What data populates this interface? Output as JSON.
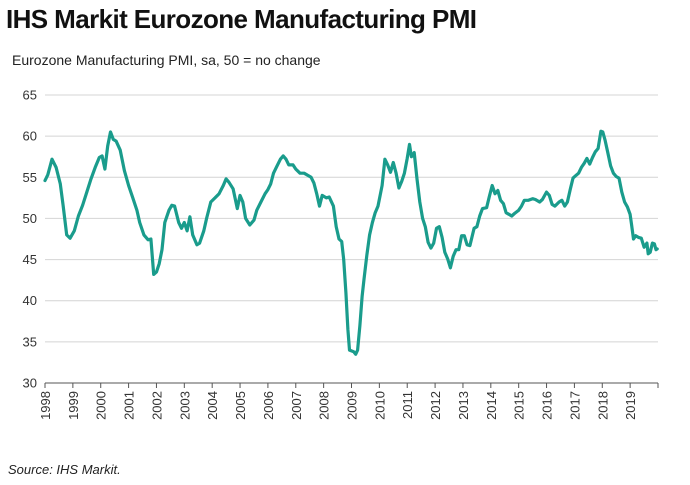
{
  "title": "IHS Markit Eurozone Manufacturing PMI",
  "subtitle": "Eurozone Manufacturing PMI, sa, 50 = no change",
  "source": "Source: IHS Markit.",
  "chart_data": {
    "type": "line",
    "title": "IHS Markit Eurozone Manufacturing PMI",
    "xlabel": "",
    "ylabel": "",
    "xlim": [
      1998.0,
      2020.0
    ],
    "ylim": [
      30,
      65
    ],
    "y_ticks": [
      30,
      35,
      40,
      45,
      50,
      55,
      60,
      65
    ],
    "x_tick_labels": [
      "1998",
      "1999",
      "2000",
      "2001",
      "2002",
      "2003",
      "2004",
      "2005",
      "2006",
      "2007",
      "2008",
      "2009",
      "2010",
      "2011",
      "2012",
      "2013",
      "2014",
      "2015",
      "2016",
      "2017",
      "2018",
      "2019"
    ],
    "grid": "horizontal",
    "line_color": "#1a9c8c",
    "series": [
      {
        "name": "Eurozone Manufacturing PMI",
        "points": [
          [
            1998.0,
            54.6
          ],
          [
            1998.1,
            55.3
          ],
          [
            1998.25,
            57.2
          ],
          [
            1998.4,
            56.2
          ],
          [
            1998.55,
            54.2
          ],
          [
            1998.65,
            51.6
          ],
          [
            1998.78,
            48.0
          ],
          [
            1998.9,
            47.6
          ],
          [
            1999.05,
            48.5
          ],
          [
            1999.2,
            50.3
          ],
          [
            1999.35,
            51.6
          ],
          [
            1999.5,
            53.2
          ],
          [
            1999.65,
            54.8
          ],
          [
            1999.8,
            56.2
          ],
          [
            1999.95,
            57.4
          ],
          [
            2000.05,
            57.6
          ],
          [
            2000.15,
            56.0
          ],
          [
            2000.25,
            58.8
          ],
          [
            2000.35,
            60.5
          ],
          [
            2000.45,
            59.6
          ],
          [
            2000.55,
            59.4
          ],
          [
            2000.7,
            58.3
          ],
          [
            2000.85,
            55.8
          ],
          [
            2001.0,
            54.0
          ],
          [
            2001.15,
            52.5
          ],
          [
            2001.3,
            51.0
          ],
          [
            2001.4,
            49.5
          ],
          [
            2001.55,
            48.0
          ],
          [
            2001.7,
            47.4
          ],
          [
            2001.8,
            47.5
          ],
          [
            2001.9,
            43.2
          ],
          [
            2002.0,
            43.5
          ],
          [
            2002.1,
            44.5
          ],
          [
            2002.2,
            46.2
          ],
          [
            2002.3,
            49.5
          ],
          [
            2002.45,
            51.0
          ],
          [
            2002.55,
            51.6
          ],
          [
            2002.65,
            51.5
          ],
          [
            2002.8,
            49.5
          ],
          [
            2002.9,
            48.8
          ],
          [
            2003.0,
            49.5
          ],
          [
            2003.1,
            48.5
          ],
          [
            2003.2,
            50.2
          ],
          [
            2003.3,
            48.0
          ],
          [
            2003.45,
            46.8
          ],
          [
            2003.55,
            47.0
          ],
          [
            2003.7,
            48.5
          ],
          [
            2003.8,
            50.0
          ],
          [
            2003.95,
            52.0
          ],
          [
            2004.1,
            52.5
          ],
          [
            2004.25,
            53.0
          ],
          [
            2004.4,
            54.0
          ],
          [
            2004.5,
            54.8
          ],
          [
            2004.6,
            54.4
          ],
          [
            2004.75,
            53.6
          ],
          [
            2004.9,
            51.2
          ],
          [
            2005.0,
            52.8
          ],
          [
            2005.1,
            52.0
          ],
          [
            2005.2,
            50.0
          ],
          [
            2005.35,
            49.2
          ],
          [
            2005.5,
            49.8
          ],
          [
            2005.6,
            51.0
          ],
          [
            2005.75,
            52.0
          ],
          [
            2005.9,
            53.0
          ],
          [
            2006.0,
            53.5
          ],
          [
            2006.1,
            54.2
          ],
          [
            2006.2,
            55.5
          ],
          [
            2006.3,
            56.2
          ],
          [
            2006.45,
            57.2
          ],
          [
            2006.55,
            57.6
          ],
          [
            2006.65,
            57.2
          ],
          [
            2006.75,
            56.5
          ],
          [
            2006.9,
            56.5
          ],
          [
            2007.0,
            56.0
          ],
          [
            2007.15,
            55.5
          ],
          [
            2007.3,
            55.5
          ],
          [
            2007.45,
            55.2
          ],
          [
            2007.55,
            55.0
          ],
          [
            2007.65,
            54.3
          ],
          [
            2007.75,
            53.0
          ],
          [
            2007.85,
            51.5
          ],
          [
            2007.95,
            52.8
          ],
          [
            2008.1,
            52.5
          ],
          [
            2008.2,
            52.6
          ],
          [
            2008.35,
            51.5
          ],
          [
            2008.45,
            49.0
          ],
          [
            2008.55,
            47.5
          ],
          [
            2008.65,
            47.2
          ],
          [
            2008.72,
            45.0
          ],
          [
            2008.8,
            41.0
          ],
          [
            2008.87,
            36.5
          ],
          [
            2008.93,
            34.0
          ],
          [
            2009.0,
            33.9
          ],
          [
            2009.08,
            33.8
          ],
          [
            2009.15,
            33.5
          ],
          [
            2009.22,
            34.0
          ],
          [
            2009.3,
            37.0
          ],
          [
            2009.38,
            40.5
          ],
          [
            2009.45,
            42.6
          ],
          [
            2009.55,
            45.5
          ],
          [
            2009.65,
            48.0
          ],
          [
            2009.75,
            49.5
          ],
          [
            2009.85,
            50.7
          ],
          [
            2009.95,
            51.5
          ],
          [
            2010.1,
            54.0
          ],
          [
            2010.2,
            57.2
          ],
          [
            2010.3,
            56.5
          ],
          [
            2010.4,
            55.6
          ],
          [
            2010.5,
            56.8
          ],
          [
            2010.6,
            55.5
          ],
          [
            2010.7,
            53.7
          ],
          [
            2010.8,
            54.5
          ],
          [
            2010.9,
            55.5
          ],
          [
            2011.0,
            57.3
          ],
          [
            2011.08,
            59.0
          ],
          [
            2011.15,
            57.5
          ],
          [
            2011.25,
            58.0
          ],
          [
            2011.35,
            54.8
          ],
          [
            2011.45,
            52.0
          ],
          [
            2011.55,
            50.0
          ],
          [
            2011.65,
            49.0
          ],
          [
            2011.75,
            47.1
          ],
          [
            2011.85,
            46.4
          ],
          [
            2011.95,
            47.0
          ],
          [
            2012.05,
            48.8
          ],
          [
            2012.15,
            49.0
          ],
          [
            2012.25,
            47.7
          ],
          [
            2012.35,
            45.9
          ],
          [
            2012.45,
            45.1
          ],
          [
            2012.55,
            44.0
          ],
          [
            2012.65,
            45.4
          ],
          [
            2012.75,
            46.2
          ],
          [
            2012.85,
            46.2
          ],
          [
            2012.95,
            47.9
          ],
          [
            2013.05,
            47.9
          ],
          [
            2013.15,
            46.8
          ],
          [
            2013.25,
            46.7
          ],
          [
            2013.4,
            48.8
          ],
          [
            2013.5,
            49.0
          ],
          [
            2013.6,
            50.3
          ],
          [
            2013.7,
            51.2
          ],
          [
            2013.85,
            51.3
          ],
          [
            2013.95,
            52.7
          ],
          [
            2014.05,
            54.0
          ],
          [
            2014.15,
            53.0
          ],
          [
            2014.25,
            53.4
          ],
          [
            2014.35,
            52.2
          ],
          [
            2014.45,
            51.8
          ],
          [
            2014.55,
            50.7
          ],
          [
            2014.65,
            50.5
          ],
          [
            2014.75,
            50.3
          ],
          [
            2014.85,
            50.6
          ],
          [
            2015.0,
            51.0
          ],
          [
            2015.1,
            51.5
          ],
          [
            2015.2,
            52.2
          ],
          [
            2015.35,
            52.2
          ],
          [
            2015.5,
            52.4
          ],
          [
            2015.6,
            52.3
          ],
          [
            2015.75,
            52.0
          ],
          [
            2015.85,
            52.3
          ],
          [
            2016.0,
            53.2
          ],
          [
            2016.1,
            52.8
          ],
          [
            2016.2,
            51.7
          ],
          [
            2016.3,
            51.5
          ],
          [
            2016.45,
            52.0
          ],
          [
            2016.55,
            52.2
          ],
          [
            2016.65,
            51.5
          ],
          [
            2016.75,
            52.0
          ],
          [
            2016.85,
            53.5
          ],
          [
            2016.95,
            54.9
          ],
          [
            2017.05,
            55.2
          ],
          [
            2017.15,
            55.5
          ],
          [
            2017.25,
            56.2
          ],
          [
            2017.35,
            56.7
          ],
          [
            2017.45,
            57.3
          ],
          [
            2017.55,
            56.6
          ],
          [
            2017.65,
            57.4
          ],
          [
            2017.75,
            58.1
          ],
          [
            2017.85,
            58.5
          ],
          [
            2017.95,
            60.6
          ],
          [
            2018.02,
            60.5
          ],
          [
            2018.1,
            59.5
          ],
          [
            2018.2,
            58.0
          ],
          [
            2018.3,
            56.4
          ],
          [
            2018.4,
            55.5
          ],
          [
            2018.5,
            55.1
          ],
          [
            2018.6,
            54.9
          ],
          [
            2018.7,
            53.2
          ],
          [
            2018.8,
            52.0
          ],
          [
            2018.9,
            51.4
          ],
          [
            2019.0,
            50.5
          ],
          [
            2019.05,
            49.3
          ],
          [
            2019.12,
            47.5
          ],
          [
            2019.2,
            47.9
          ],
          [
            2019.3,
            47.7
          ],
          [
            2019.4,
            47.6
          ],
          [
            2019.5,
            46.5
          ],
          [
            2019.6,
            47.0
          ],
          [
            2019.65,
            45.7
          ],
          [
            2019.72,
            45.9
          ],
          [
            2019.8,
            47.0
          ],
          [
            2019.87,
            46.9
          ],
          [
            2019.93,
            46.2
          ],
          [
            2019.97,
            46.3
          ]
        ]
      }
    ]
  }
}
